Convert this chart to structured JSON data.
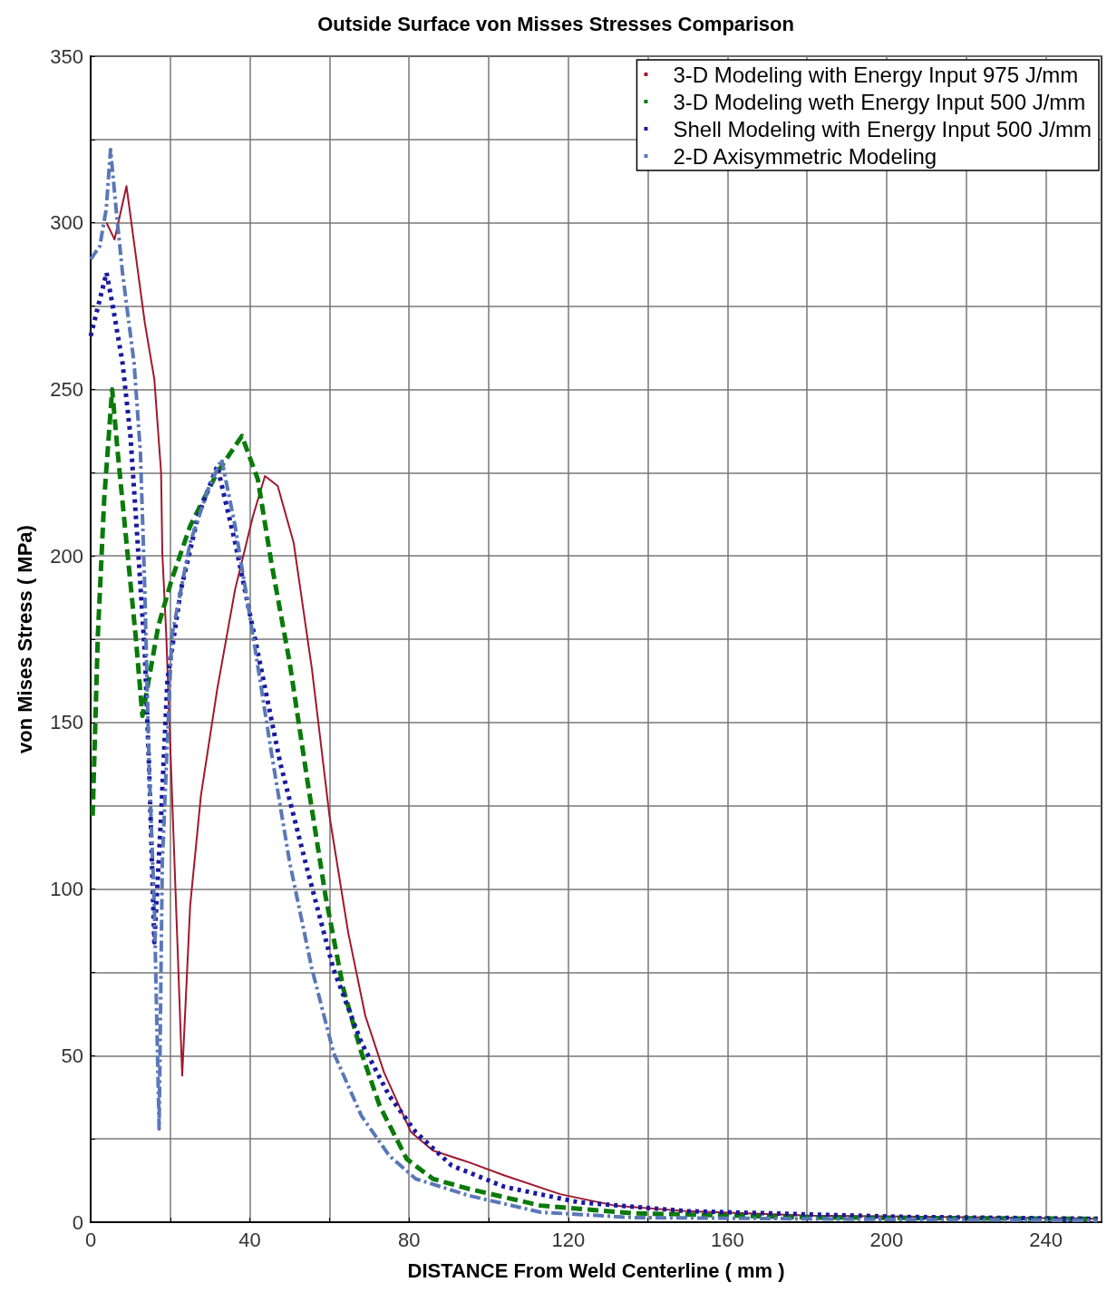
{
  "chart_data": {
    "type": "line",
    "title": "Outside Surface von Misses Stresses Comparison",
    "xlabel": "DISTANCE From Weld Centerline ( mm )",
    "ylabel": "von Mises Stress ( MPa)",
    "xlim": [
      0,
      254
    ],
    "ylim": [
      0,
      350
    ],
    "xticks": [
      0,
      {
        "value": 20,
        "label": null
      },
      40,
      {
        "value": 60,
        "label": null
      },
      80,
      {
        "value": 100,
        "label": null
      },
      120,
      {
        "value": 140,
        "label": null
      },
      160,
      {
        "value": 180,
        "label": null
      },
      200,
      {
        "value": 220,
        "label": null
      },
      240
    ],
    "yticks": [
      0,
      {
        "value": 25,
        "label": null
      },
      50,
      {
        "value": 75,
        "label": null
      },
      100,
      {
        "value": 125,
        "label": null
      },
      150,
      {
        "value": 175,
        "label": null
      },
      200,
      {
        "value": 225,
        "label": null
      },
      250,
      {
        "value": 275,
        "label": null
      },
      300,
      {
        "value": 325,
        "label": null
      },
      350
    ],
    "grid": true,
    "legend": "top right",
    "marker": "none",
    "series": [
      {
        "name": "3-D Modeling with Energy Input 975 J/mm",
        "color": "#a0182e",
        "line_style": "solid",
        "x": [
          4,
          6,
          9,
          13.6,
          16,
          17.7,
          18,
          19,
          23,
          25,
          27.7,
          31.8,
          36.3,
          40.8,
          43.8,
          47,
          51,
          55.6,
          60,
          64.7,
          69,
          73.7,
          80.5,
          86,
          95,
          104,
          118,
          131.6,
          150,
          181,
          253
        ],
        "values": [
          300,
          295,
          311,
          270,
          253,
          225,
          201,
          176,
          44,
          95,
          128,
          160,
          190,
          212,
          224,
          221,
          204,
          166,
          122,
          87,
          62,
          45,
          27,
          21.5,
          18,
          14,
          8.4,
          5,
          3.3,
          2,
          1
        ]
      },
      {
        "name": "3-D Modeling weth Energy Input 500 J/mm",
        "color": "#0a7a0a",
        "line_style": "dashed",
        "x": [
          0.5,
          1.8,
          3.4,
          5.4,
          6.8,
          9,
          11.3,
          13,
          17,
          20.4,
          25,
          31.8,
          38,
          42,
          45.4,
          50,
          54.4,
          59,
          63.5,
          68,
          72.6,
          79.4,
          86,
          95,
          113,
          136,
          181,
          253
        ],
        "values": [
          122,
          176,
          217,
          250,
          231,
          204,
          176,
          152,
          179,
          193,
          209,
          225,
          236,
          223,
          198,
          168,
          133,
          98,
          70,
          51,
          35,
          19,
          13,
          10,
          5,
          2.7,
          1.4,
          1
        ]
      },
      {
        "name": "Shell Modeling with Energy Input 500 J/mm",
        "color": "#1a1aa0",
        "line_style": "dotted",
        "x": [
          0,
          2.3,
          4,
          5.7,
          8,
          10,
          11.8,
          13.6,
          14.7,
          16,
          17.7,
          19.3,
          22.7,
          27,
          31.8,
          36.3,
          42,
          47.6,
          54.4,
          61,
          68,
          75,
          81.7,
          90.7,
          104,
          122.5,
          150,
          204,
          253
        ],
        "values": [
          266,
          277,
          285,
          274,
          258,
          236,
          204,
          171,
          136,
          84,
          122,
          163,
          190,
          212,
          227,
          204,
          171,
          138,
          106,
          76,
          54,
          38,
          27,
          17,
          10.6,
          6,
          3.3,
          1.6,
          1
        ]
      },
      {
        "name": "2-D Axisymmetric Modeling",
        "color": "#5a78b8",
        "line_style": "dashdot",
        "x": [
          0,
          2.3,
          3.9,
          5,
          6.4,
          8,
          10.9,
          12.5,
          13.6,
          14.7,
          16,
          17.2,
          18,
          20.4,
          25,
          29.5,
          32.9,
          36.3,
          40.8,
          45.4,
          50,
          55.6,
          61,
          68,
          75,
          81.7,
          95,
          113,
          136,
          204,
          253
        ],
        "values": [
          289,
          293,
          304,
          322,
          304,
          285,
          258,
          231,
          190,
          136,
          95,
          28,
          108,
          176,
          204,
          220,
          229,
          209,
          176,
          141,
          108,
          76,
          51,
          32,
          20,
          13,
          8,
          3,
          1.4,
          0.8,
          0.5
        ]
      }
    ]
  }
}
